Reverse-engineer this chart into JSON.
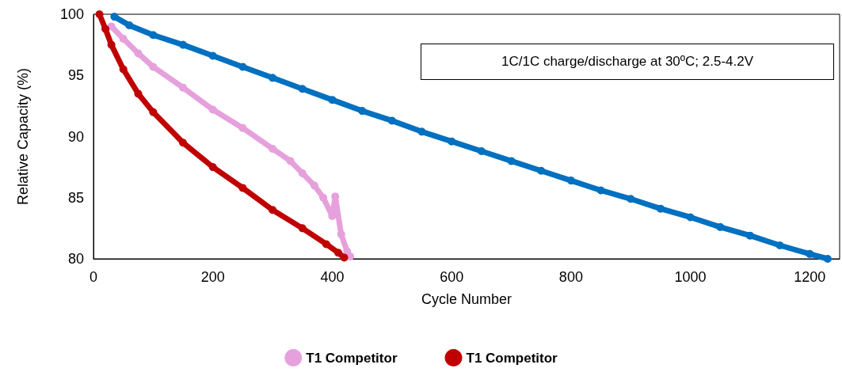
{
  "chart_data": {
    "type": "line",
    "xlabel": "Cycle Number",
    "ylabel": "Relative Capacity (%)",
    "xlim": [
      0,
      1250
    ],
    "xticks": [
      0,
      200,
      400,
      600,
      800,
      1000,
      1200
    ],
    "ylim": [
      80,
      100
    ],
    "yticks": [
      80,
      85,
      90,
      95,
      100
    ],
    "grid": false,
    "legend": "bottom",
    "marker": "circle",
    "line_style": "solid",
    "annotations": [
      "1C/1C charge/discharge at 30ºC; 2.5-4.2V"
    ],
    "series": [
      {
        "color": "#0070c0",
        "x": [
          35,
          60,
          100,
          150,
          200,
          250,
          300,
          350,
          400,
          450,
          500,
          550,
          600,
          650,
          700,
          750,
          800,
          850,
          900,
          950,
          1000,
          1050,
          1100,
          1150,
          1200,
          1230
        ],
        "values": [
          99.8,
          99.1,
          98.3,
          97.5,
          96.6,
          95.7,
          94.8,
          93.9,
          93.0,
          92.1,
          91.3,
          90.4,
          89.6,
          88.8,
          88.0,
          87.2,
          86.4,
          85.6,
          84.9,
          84.1,
          83.4,
          82.6,
          81.9,
          81.1,
          80.4,
          80.0
        ]
      },
      {
        "name": "T1 Competitor",
        "color": "#e6a0dc",
        "x": [
          30,
          50,
          75,
          100,
          150,
          200,
          250,
          300,
          330,
          350,
          370,
          385,
          400,
          405,
          415,
          425,
          430
        ],
        "values": [
          99,
          98,
          96.8,
          95.7,
          94,
          92.2,
          90.7,
          89,
          88,
          87,
          86,
          85,
          83.5,
          85.1,
          82,
          80.6,
          80.2
        ]
      },
      {
        "name": "T1 Competitor",
        "color": "#c00000",
        "x": [
          10,
          20,
          30,
          50,
          75,
          100,
          150,
          200,
          250,
          300,
          350,
          390,
          410,
          420
        ],
        "values": [
          100,
          98.8,
          97.5,
          95.5,
          93.5,
          92,
          89.5,
          87.5,
          85.8,
          84,
          82.5,
          81.2,
          80.5,
          80.1
        ]
      }
    ]
  }
}
